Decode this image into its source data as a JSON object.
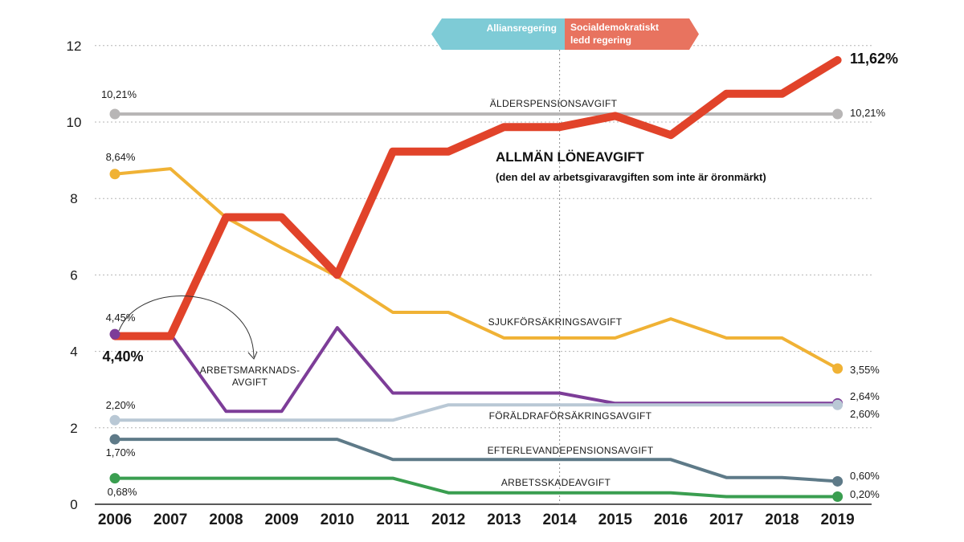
{
  "chart_data": {
    "type": "line",
    "categories": [
      "2006",
      "2007",
      "2008",
      "2009",
      "2010",
      "2011",
      "2012",
      "2013",
      "2014",
      "2015",
      "2016",
      "2017",
      "2018",
      "2019"
    ],
    "ylim": [
      0,
      12
    ],
    "yticks": [
      "0",
      "2",
      "4",
      "6",
      "8",
      "10",
      "12"
    ],
    "grid": true,
    "governments": {
      "left": "Alliansregering",
      "right_line1": "Socialdemokratiskt",
      "right_line2": "ledd regering",
      "divider_at": "2014",
      "left_color": "#7ecbd6",
      "right_color": "#e8735f"
    },
    "series": [
      {
        "key": "alder",
        "name": "ÄLDERSPENSIONSAVGIFT",
        "color": "#b8b6b6",
        "width": 4,
        "values": [
          10.21,
          10.21,
          10.21,
          10.21,
          10.21,
          10.21,
          10.21,
          10.21,
          10.21,
          10.21,
          10.21,
          10.21,
          10.21,
          10.21
        ],
        "start_label": "10,21%",
        "end_label": "10,21%"
      },
      {
        "key": "sjuk",
        "name": "SJUKFÖRSÄKRINGSAVGIFT",
        "color": "#f0b235",
        "width": 4,
        "values": [
          8.64,
          8.78,
          7.5,
          6.71,
          5.96,
          5.02,
          5.02,
          4.35,
          4.35,
          4.35,
          4.85,
          4.35,
          4.35,
          3.55
        ],
        "start_label": "8,64%",
        "end_label": "3,55%"
      },
      {
        "key": "arbmark",
        "name_line1": "ARBETSMARKNADS-",
        "name_line2": "AVGIFT",
        "color": "#7d3d98",
        "width": 4,
        "values": [
          4.45,
          4.45,
          2.43,
          2.43,
          4.62,
          2.91,
          2.91,
          2.91,
          2.91,
          2.64,
          2.64,
          2.64,
          2.64,
          2.64
        ],
        "start_label": "4,45%",
        "end_label": "2,64%"
      },
      {
        "key": "foraldra",
        "name": "FÖRÄLDRAFÖRSÄKRINGSAVGIFT",
        "color": "#b9c8d5",
        "width": 4,
        "values": [
          2.2,
          2.2,
          2.2,
          2.2,
          2.2,
          2.2,
          2.6,
          2.6,
          2.6,
          2.6,
          2.6,
          2.6,
          2.6,
          2.6
        ],
        "start_label": "2,20%",
        "end_label": "2,60%"
      },
      {
        "key": "efterlev",
        "name": "EFTERLEVANDEPENSIONSAVGIFT",
        "color": "#5e7a88",
        "width": 4,
        "values": [
          1.7,
          1.7,
          1.7,
          1.7,
          1.7,
          1.17,
          1.17,
          1.17,
          1.17,
          1.17,
          1.17,
          0.7,
          0.7,
          0.6
        ],
        "start_label": "1,70%",
        "end_label": "0,60%"
      },
      {
        "key": "arbskade",
        "name": "ARBETSSKADEAVGIFT",
        "color": "#3a9e50",
        "width": 4,
        "values": [
          0.68,
          0.68,
          0.68,
          0.68,
          0.68,
          0.68,
          0.3,
          0.3,
          0.3,
          0.3,
          0.3,
          0.2,
          0.2,
          0.2
        ],
        "start_label": "0,68%",
        "end_label": "0,20%"
      },
      {
        "key": "allman",
        "name": "ALLMÄN LÖNEAVGIFT",
        "subtitle": "(den del av arbetsgivaravgiften som inte är öronmärkt)",
        "color": "#e1432a",
        "width": 10,
        "values": [
          4.4,
          4.4,
          7.51,
          7.51,
          6.0,
          9.23,
          9.23,
          9.87,
          9.87,
          10.16,
          9.66,
          10.74,
          10.74,
          11.62
        ],
        "start_label": "4,40%",
        "end_label": "11,62%"
      }
    ]
  }
}
